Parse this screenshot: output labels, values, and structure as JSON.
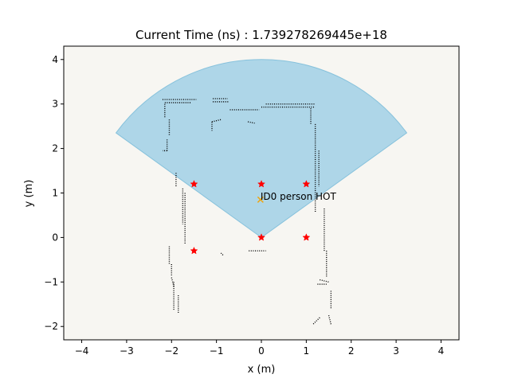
{
  "chart_data": {
    "type": "scatter",
    "title": "Current Time (ns) : 1.739278269445e+18",
    "xlabel": "x (m)",
    "ylabel": "y (m)",
    "xlim": [
      -4.4,
      4.4
    ],
    "ylim": [
      -2.3,
      4.3
    ],
    "xticks": [
      -4,
      -3,
      -2,
      -1,
      0,
      1,
      2,
      3,
      4
    ],
    "yticks": [
      -2,
      -1,
      0,
      1,
      2,
      3,
      4
    ],
    "xtick_labels": [
      "−4",
      "−3",
      "−2",
      "−1",
      "0",
      "1",
      "2",
      "3",
      "4"
    ],
    "ytick_labels": [
      "−2",
      "−1",
      "0",
      "1",
      "2",
      "3",
      "4"
    ],
    "grid": false,
    "background_color": "#f7f6f2",
    "field_of_view": {
      "center": [
        0,
        0
      ],
      "radius": 4.0,
      "angle_from_deg": 36,
      "angle_to_deg": 144,
      "fill_color": "#aed6e8",
      "edge_color": "#87c2dc"
    },
    "anchors": {
      "marker": "star",
      "color": "#ff0000",
      "points": [
        [
          -1.5,
          1.2
        ],
        [
          0,
          1.2
        ],
        [
          1.0,
          1.2
        ],
        [
          -1.5,
          -0.3
        ],
        [
          0,
          0
        ],
        [
          1.0,
          0
        ]
      ]
    },
    "tracked_objects": [
      {
        "x": -0.02,
        "y": 0.85,
        "marker": "x",
        "color": "#f0a30a",
        "label": "ID0 person HOT"
      }
    ],
    "point_cloud": {
      "color": "#000000",
      "segments": [
        [
          [
            -2.2,
            3.1
          ],
          [
            -1.45,
            3.1
          ]
        ],
        [
          [
            -2.15,
            3.03
          ],
          [
            -1.55,
            3.03
          ]
        ],
        [
          [
            -1.08,
            3.12
          ],
          [
            -0.75,
            3.12
          ]
        ],
        [
          [
            -1.08,
            3.05
          ],
          [
            -0.72,
            3.05
          ]
        ],
        [
          [
            -0.7,
            2.87
          ],
          [
            -0.05,
            2.87
          ]
        ],
        [
          [
            0.0,
            2.93
          ],
          [
            1.2,
            2.93
          ]
        ],
        [
          [
            0.1,
            3.0
          ],
          [
            1.2,
            3.0
          ]
        ],
        [
          [
            1.1,
            2.9
          ],
          [
            1.1,
            2.55
          ]
        ],
        [
          [
            -2.15,
            3.0
          ],
          [
            -2.15,
            2.7
          ]
        ],
        [
          [
            -2.05,
            2.65
          ],
          [
            -2.05,
            2.3
          ]
        ],
        [
          [
            -2.1,
            2.2
          ],
          [
            -2.1,
            1.95
          ]
        ],
        [
          [
            -2.1,
            1.95
          ],
          [
            -2.2,
            1.95
          ]
        ],
        [
          [
            -1.1,
            2.6
          ],
          [
            -1.1,
            2.4
          ]
        ],
        [
          [
            -1.1,
            2.6
          ],
          [
            -0.9,
            2.65
          ]
        ],
        [
          [
            -0.3,
            2.6
          ],
          [
            -0.15,
            2.57
          ]
        ],
        [
          [
            1.2,
            2.55
          ],
          [
            1.2,
            0.55
          ]
        ],
        [
          [
            1.28,
            1.95
          ],
          [
            1.28,
            1.15
          ]
        ],
        [
          [
            -1.9,
            1.45
          ],
          [
            -1.9,
            1.15
          ]
        ],
        [
          [
            -1.75,
            1.1
          ],
          [
            -1.75,
            0.3
          ]
        ],
        [
          [
            -1.7,
            1.0
          ],
          [
            -1.7,
            -0.15
          ]
        ],
        [
          [
            -2.05,
            -0.2
          ],
          [
            -2.05,
            -0.6
          ]
        ],
        [
          [
            -2.0,
            -0.6
          ],
          [
            -2.0,
            -0.85
          ]
        ],
        [
          [
            -2.0,
            -0.9
          ],
          [
            -1.95,
            -1.1
          ]
        ],
        [
          [
            -1.95,
            -1.0
          ],
          [
            -1.95,
            -1.65
          ]
        ],
        [
          [
            -1.85,
            -1.3
          ],
          [
            -1.85,
            -1.7
          ]
        ],
        [
          [
            -0.28,
            -0.3
          ],
          [
            0.1,
            -0.3
          ]
        ],
        [
          [
            -0.9,
            -0.35
          ],
          [
            -0.85,
            -0.4
          ]
        ],
        [
          [
            1.4,
            0.65
          ],
          [
            1.4,
            -0.3
          ]
        ],
        [
          [
            1.45,
            -0.3
          ],
          [
            1.45,
            -0.9
          ]
        ],
        [
          [
            1.3,
            -0.95
          ],
          [
            1.5,
            -1.0
          ]
        ],
        [
          [
            1.25,
            -1.05
          ],
          [
            1.45,
            -1.05
          ]
        ],
        [
          [
            1.55,
            -1.2
          ],
          [
            1.55,
            -1.6
          ]
        ],
        [
          [
            1.3,
            -1.8
          ],
          [
            1.15,
            -1.95
          ]
        ],
        [
          [
            1.5,
            -1.75
          ],
          [
            1.55,
            -1.95
          ]
        ]
      ]
    }
  }
}
